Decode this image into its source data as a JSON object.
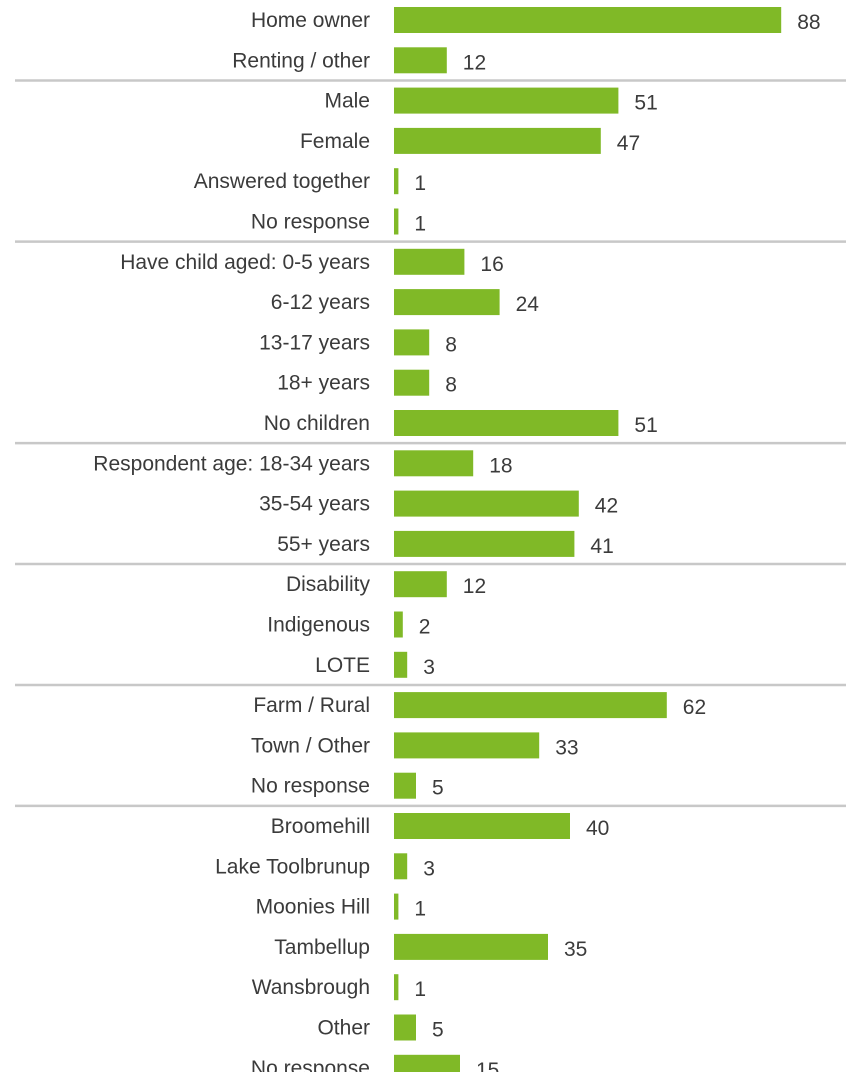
{
  "chart_data": {
    "type": "bar",
    "orientation": "horizontal",
    "bar_color": "#80b927",
    "divider_color": "#c8c8c8",
    "xlim": [
      0,
      100
    ],
    "grid": false,
    "legend": "none",
    "groups": [
      {
        "categories": [
          "Home owner",
          "Renting / other"
        ],
        "values": [
          88,
          12
        ]
      },
      {
        "categories": [
          "Male",
          "Female",
          "Answered together",
          "No response"
        ],
        "values": [
          51,
          47,
          1,
          1
        ]
      },
      {
        "categories": [
          "Have child aged: 0-5 years",
          "6-12 years",
          "13-17 years",
          "18+ years",
          "No children"
        ],
        "values": [
          16,
          24,
          8,
          8,
          51
        ]
      },
      {
        "categories": [
          "Respondent age: 18-34 years",
          "35-54 years",
          "55+ years"
        ],
        "values": [
          18,
          42,
          41
        ]
      },
      {
        "categories": [
          "Disability",
          "Indigenous",
          "LOTE"
        ],
        "values": [
          12,
          2,
          3
        ]
      },
      {
        "categories": [
          "Farm / Rural",
          "Town / Other",
          "No response"
        ],
        "values": [
          62,
          33,
          5
        ]
      },
      {
        "categories": [
          "Broomehill",
          "Lake Toolbrunup",
          "Moonies Hill",
          "Tambellup",
          "Wansbrough",
          "Other",
          "No response"
        ],
        "values": [
          40,
          3,
          1,
          35,
          1,
          5,
          15
        ]
      }
    ]
  }
}
